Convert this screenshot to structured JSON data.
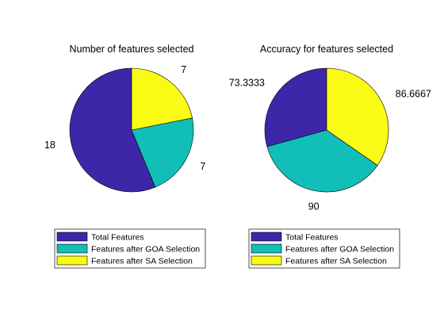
{
  "chart_data": [
    {
      "type": "pie",
      "title": "Number of features selected",
      "categories": [
        "Total Features",
        "Features after GOA Selection",
        "Features after SA Selection"
      ],
      "values": [
        18,
        7,
        7
      ],
      "labels": [
        "18",
        "7",
        "7"
      ],
      "colors": [
        "#3e26a8",
        "#12bfb8",
        "#f9fb15"
      ],
      "start": "top, counterclockwise",
      "legend": "below"
    },
    {
      "type": "pie",
      "title": "Accuracy for features selected",
      "categories": [
        "Total Features",
        "Features after GOA Selection",
        "Features after SA Selection"
      ],
      "values": [
        73.3333,
        90,
        86.6667
      ],
      "labels": [
        "73.3333",
        "90",
        "86.6667"
      ],
      "colors": [
        "#3e26a8",
        "#12bfb8",
        "#f9fb15"
      ],
      "start": "top, counterclockwise",
      "legend": "below"
    }
  ]
}
